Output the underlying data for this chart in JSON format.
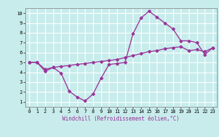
{
  "xlabel": "Windchill (Refroidissement éolien,°C)",
  "bg_color": "#c8ecec",
  "line_color": "#993399",
  "grid_color": "#ffffff",
  "x_data": [
    0,
    1,
    2,
    3,
    4,
    5,
    6,
    7,
    8,
    9,
    10,
    11,
    12,
    13,
    14,
    15,
    16,
    17,
    18,
    19,
    20,
    21,
    22,
    23
  ],
  "y_data1": [
    5.0,
    5.0,
    4.1,
    4.5,
    3.9,
    2.1,
    1.5,
    1.1,
    1.8,
    3.4,
    4.8,
    4.9,
    5.0,
    7.9,
    9.5,
    10.2,
    9.6,
    9.0,
    8.4,
    7.2,
    7.2,
    7.0,
    5.8,
    6.5
  ],
  "y_data2": [
    5.0,
    5.0,
    4.3,
    4.5,
    4.6,
    4.7,
    4.8,
    4.9,
    5.0,
    5.1,
    5.2,
    5.3,
    5.5,
    5.7,
    5.9,
    6.1,
    6.2,
    6.4,
    6.5,
    6.6,
    6.2,
    6.3,
    6.1,
    6.5
  ],
  "xlim": [
    -0.5,
    23.5
  ],
  "ylim": [
    0.5,
    10.5
  ],
  "xticks": [
    0,
    1,
    2,
    3,
    4,
    5,
    6,
    7,
    8,
    9,
    10,
    11,
    12,
    13,
    14,
    15,
    16,
    17,
    18,
    19,
    20,
    21,
    22,
    23
  ],
  "yticks": [
    1,
    2,
    3,
    4,
    5,
    6,
    7,
    8,
    9,
    10
  ],
  "marker": "D",
  "markersize": 2.5,
  "linewidth": 1.0,
  "tick_fontsize": 5,
  "xlabel_fontsize": 5.5
}
